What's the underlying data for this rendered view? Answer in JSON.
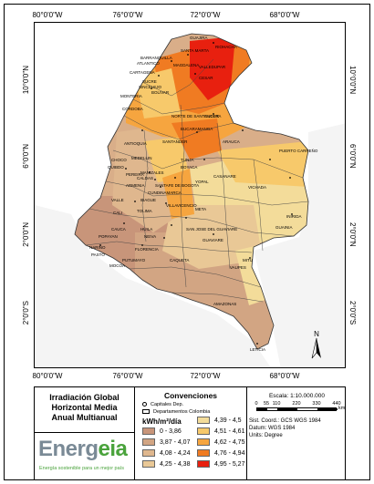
{
  "map": {
    "top_ticks": [
      "80°0'0\"W",
      "76°0'0\"W",
      "72°0'0\"W",
      "68°0'0\"W"
    ],
    "bottom_ticks": [
      "80°0'0\"W",
      "76°0'0\"W",
      "72°0'0\"W",
      "68°0'0\"W"
    ],
    "left_ticks": [
      "10°0'0\"N",
      "6°0'0\"N",
      "2°0'0\"N",
      "2°0'0\"S"
    ],
    "right_ticks": [
      "10°0'0\"N",
      "6°0'0\"N",
      "2°0'0\"N",
      "2°0'0\"S"
    ],
    "north_label": "N",
    "departments": [
      "GUAJIRA",
      "CESAR",
      "MAGDALENA",
      "ATLANTICO",
      "BOLIVAR",
      "SUCRE",
      "CORDOBA",
      "ANTIOQUIA",
      "NORTE DE SANTANDER",
      "SANTANDER",
      "BOYACA",
      "ARAUCA",
      "CASANARE",
      "VICHADA",
      "CHOCO",
      "CALDAS",
      "CUNDINAMARCA",
      "META",
      "VALLE",
      "TOLIMA",
      "CAUCA",
      "HUILA",
      "NARIÑO",
      "PUTUMAYO",
      "CAQUETA",
      "GUAVIARE",
      "GUAINIA",
      "VAUPES",
      "AMAZONAS",
      "SANTAFE DE BOGOTA",
      "MEDELLIN",
      "CUCUTA",
      "PUERTO CARREÑO",
      "LETICIA",
      "MITU",
      "INIRIDA",
      "YOPAL",
      "VILLAVICENCIO",
      "FLORENCIA",
      "MOCOA",
      "PASTO",
      "POPAYAN",
      "RIOHACHA",
      "SANTA MARTA",
      "BARRANQUILLA",
      "CARTAGENA",
      "MONTERIA",
      "QUIBDO",
      "CALI",
      "IBAGUE",
      "NEIVA",
      "TUNJA",
      "BUCARAMANGA",
      "VALLEDUPAR",
      "SINCELEJO",
      "MANIZALES",
      "PEREIRA",
      "ARMENIA",
      "SAN JOSE DEL GUAVIARE"
    ]
  },
  "title": {
    "line1": "Irradiación Global",
    "line2": "Horizontal Media",
    "line3": "Anual Multianual"
  },
  "logo": {
    "brand_part1": "Energ",
    "brand_part2": "eia",
    "slogan": "Energía sostenible para un mejor país"
  },
  "conventions": {
    "title": "Convenciones",
    "capitals": "Capitales Dep.",
    "departments": "Departamentos Colombia",
    "unit": "kWh/m²/día"
  },
  "legend": [
    {
      "label": "0 - 3,86",
      "color": "#c8957a"
    },
    {
      "label": "3,87 - 4,07",
      "color": "#d2a583"
    },
    {
      "label": "4,08 - 4,24",
      "color": "#dfb78e"
    },
    {
      "label": "4,25 - 4,38",
      "color": "#e9c896"
    },
    {
      "label": "4,39 - 4,5",
      "color": "#f3dc9a"
    },
    {
      "label": "4,51 - 4,61",
      "color": "#f7c96b"
    },
    {
      "label": "4,62 - 4,75",
      "color": "#f6a53f"
    },
    {
      "label": "4,76 - 4,94",
      "color": "#f07b22"
    },
    {
      "label": "4,95 - 5,27",
      "color": "#e8200f"
    }
  ],
  "scale": {
    "title": "Escala: 1:10.000.000",
    "labels": [
      "0",
      "55",
      "110",
      "220",
      "330",
      "440"
    ],
    "unit": "km",
    "coord_system": "Sist. Coord.: GCS WGS 1984",
    "datum": "Datum: WGS 1984",
    "units": "Units: Degree"
  }
}
